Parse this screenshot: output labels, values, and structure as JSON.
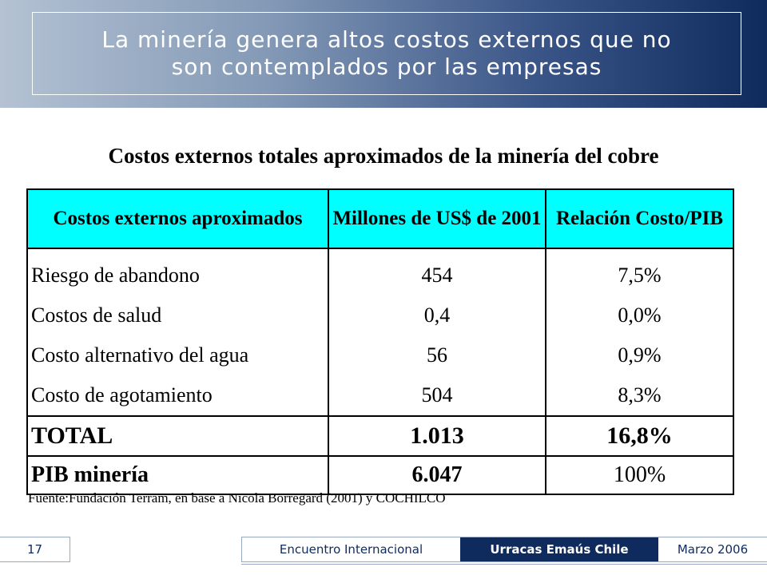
{
  "slide": {
    "title_line1": "La minería genera altos costos externos que no",
    "title_line2": "son contemplados por las empresas",
    "subtitle": "Costos externos totales aproximados de la minería del cobre",
    "colors": {
      "header_dark": "#0f2a5c",
      "header_light": "#b4c2d3",
      "table_header_bg": "#00ffff"
    }
  },
  "table": {
    "headers": [
      "Costos externos aproximados",
      "Millones de US$ de 2001",
      "Relación Costo/PIB"
    ],
    "rows": [
      {
        "label": "Riesgo de abandono",
        "millones": "454",
        "relacion": "7,5%"
      },
      {
        "label": "Costos de salud",
        "millones": "0,4",
        "relacion": "0,0%"
      },
      {
        "label": "Costo alternativo del agua",
        "millones": "56",
        "relacion": "0,9%"
      },
      {
        "label": "Costo de agotamiento",
        "millones": "504",
        "relacion": "8,3%"
      }
    ],
    "total": {
      "label": "TOTAL",
      "millones": "1.013",
      "relacion": "16,8%"
    },
    "pib": {
      "label": "PIB minería",
      "millones": "6.047",
      "relacion": "100%"
    }
  },
  "source": "Fuente:Fundación Terram, en base a Nicola Borregard (2001) y COCHILCO",
  "footer": {
    "page_number": "17",
    "event": "Encuentro Internacional",
    "organization": "Urracas Emaús Chile",
    "date": "Marzo 2006"
  }
}
